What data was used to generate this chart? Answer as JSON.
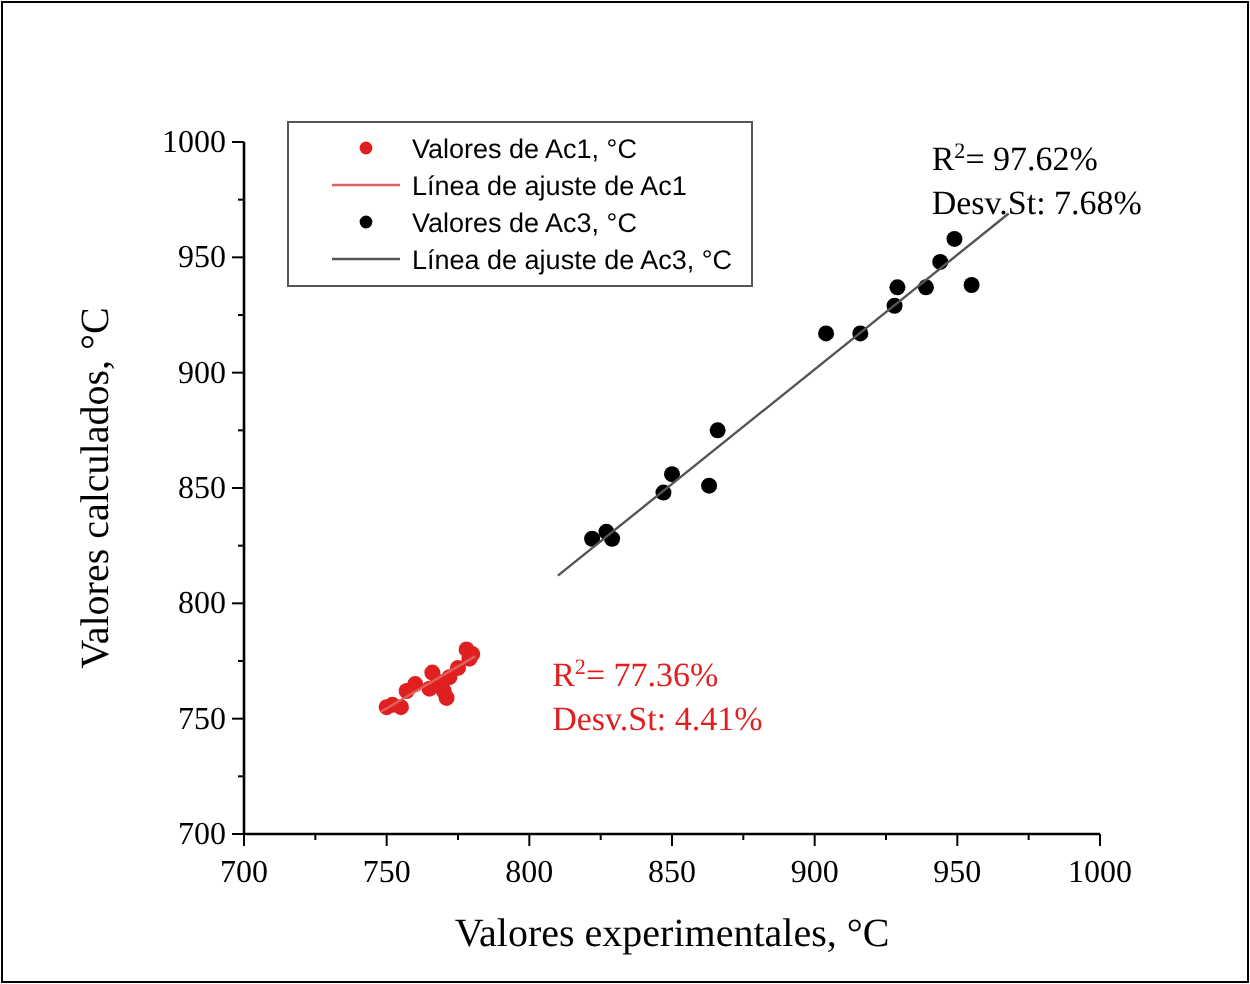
{
  "chart_data": {
    "type": "scatter",
    "xlabel": "Valores experimentales, °C",
    "ylabel": "Valores calculados, °C",
    "xlim": [
      700,
      1000
    ],
    "ylim": [
      700,
      1000
    ],
    "xticks": [
      700,
      750,
      800,
      850,
      900,
      950,
      1000
    ],
    "yticks": [
      700,
      750,
      800,
      850,
      900,
      950,
      1000
    ],
    "grid": false,
    "legend": "top left",
    "marker": "circle",
    "series": [
      {
        "name": "Valores de Ac1, °C",
        "color": "#e02020",
        "x": [
          750,
          752,
          755,
          757,
          760,
          765,
          766,
          768,
          770,
          771,
          772,
          775,
          778,
          779,
          780
        ],
        "values": [
          755,
          756,
          755,
          762,
          765,
          763,
          770,
          766,
          762,
          759,
          768,
          772,
          780,
          776,
          778
        ]
      },
      {
        "name": "Línea de ajuste de Ac1",
        "type": "line",
        "marker": "none",
        "color": "#e06060",
        "x": [
          748,
          781
        ],
        "values": [
          753,
          777
        ]
      },
      {
        "name": "Valores de Ac3, °C",
        "color": "#000000",
        "x": [
          822,
          827,
          829,
          847,
          850,
          863,
          866,
          904,
          916,
          928,
          929,
          939,
          944,
          949,
          955
        ],
        "values": [
          828,
          831,
          828,
          848,
          856,
          851,
          875,
          917,
          917,
          929,
          937,
          937,
          948,
          958,
          938
        ]
      },
      {
        "name": "Línea de ajuste de Ac3, °C",
        "type": "line",
        "marker": "none",
        "color": "#555555",
        "x": [
          810,
          968
        ],
        "values": [
          812,
          969
        ]
      }
    ],
    "annotations": [
      "R$^{2}$= 97.62%",
      "Desv.St: 7.68%",
      "R$^{2}$= 77.36%",
      "Desv.St: 4.41%"
    ]
  }
}
